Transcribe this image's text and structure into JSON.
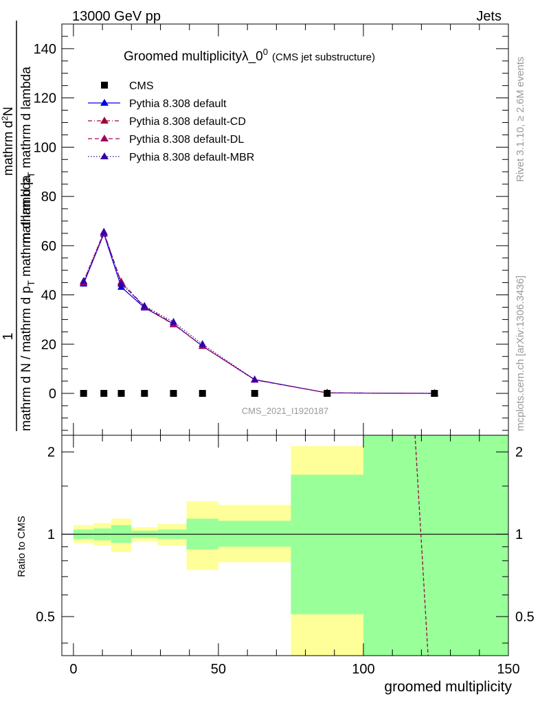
{
  "header": {
    "left": "13000 GeV pp",
    "right": "Jets"
  },
  "side_labels": {
    "rivet": "Rivet 3.1.10, ≥ 2.6M events",
    "mcplots": "mcplots.cern.ch [arXiv:1306.3436]"
  },
  "ylabel": {
    "numerator": "1",
    "denominator": "mathrm d N / mathrm d p",
    "denominator_sub": "T",
    "denominator_tail": " mathrm d lambda",
    "upper_numerator": "mathrm d",
    "upper_sup": "2",
    "upper_tail": "N",
    "upper_denom": "mathrm d p",
    "upper_denom_sub": "T",
    "upper_denom_tail": " mathrm d lambda"
  },
  "colors": {
    "cms": "#000000",
    "default": "#0000dd",
    "cd": "#a00040",
    "dl": "#a00060",
    "mbr": "#3300aa",
    "band_inner": "#99ff99",
    "band_outer": "#ffff99",
    "watermark": "#999999"
  },
  "chart_data": [
    {
      "type": "line",
      "title_main": "Groomed multiplicityλ_0",
      "title_sup": "0",
      "title_paren": "(CMS jet substructure)",
      "watermark": "CMS_2021_I1920187",
      "ylim": [
        -17,
        150
      ],
      "yticks": [
        0,
        20,
        40,
        60,
        80,
        100,
        120,
        140
      ],
      "xlim": [
        -4,
        150
      ],
      "legend_position": "top-left",
      "cms": {
        "name": "CMS",
        "x": [
          3.5,
          10.5,
          16.5,
          24.5,
          34.5,
          44.5,
          62.5,
          87.5,
          124.5
        ],
        "y": [
          0,
          0,
          0,
          0,
          0,
          0,
          0,
          0,
          0
        ]
      },
      "series": [
        {
          "name": "Pythia 8.308 default",
          "style": "solid",
          "x": [
            3.5,
            10.5,
            16.5,
            24.5,
            34.5,
            44.5,
            62.5,
            87.5,
            124.5
          ],
          "y": [
            44.5,
            64.8,
            43.2,
            34.8,
            28.2,
            19.2,
            5.6,
            0.2,
            0.0
          ]
        },
        {
          "name": "Pythia 8.308 default-CD",
          "style": "dashdot",
          "x": [
            3.5,
            10.5,
            16.5,
            24.5,
            34.5,
            44.5,
            62.5,
            87.5,
            124.5
          ],
          "y": [
            45.0,
            65.0,
            45.3,
            35.3,
            28.3,
            19.2,
            5.5,
            0.2,
            0.0
          ]
        },
        {
          "name": "Pythia 8.308 default-DL",
          "style": "dashed",
          "x": [
            3.5,
            10.5,
            16.5,
            24.5,
            34.5,
            44.5,
            62.5,
            87.5,
            124.5
          ],
          "y": [
            45.3,
            65.4,
            45.0,
            35.0,
            28.0,
            19.3,
            5.5,
            0.2,
            0.0
          ]
        },
        {
          "name": "Pythia 8.308 default-MBR",
          "style": "dotted",
          "x": [
            3.5,
            10.5,
            16.5,
            24.5,
            34.5,
            44.5,
            62.5,
            87.5,
            124.5
          ],
          "y": [
            45.6,
            65.6,
            44.4,
            35.5,
            29.0,
            20.0,
            5.6,
            0.2,
            0.0
          ]
        }
      ]
    },
    {
      "type": "area",
      "ylabel": "Ratio to CMS",
      "xlabel": "groomed multiplicity",
      "ylim": [
        0.36,
        2.3
      ],
      "xlim": [
        -4,
        150
      ],
      "xticks": [
        0,
        50,
        100,
        150
      ],
      "yticks": [
        0.5,
        1,
        2
      ],
      "bins": [
        {
          "lo": 0,
          "hi": 7,
          "inner": [
            0.96,
            1.04
          ],
          "outer": [
            0.93,
            1.08
          ]
        },
        {
          "lo": 7,
          "hi": 13,
          "inner": [
            0.95,
            1.05
          ],
          "outer": [
            0.91,
            1.1
          ]
        },
        {
          "lo": 13,
          "hi": 20,
          "inner": [
            0.93,
            1.08
          ],
          "outer": [
            0.86,
            1.14
          ]
        },
        {
          "lo": 20,
          "hi": 29,
          "inner": [
            0.97,
            1.03
          ],
          "outer": [
            0.94,
            1.06
          ]
        },
        {
          "lo": 29,
          "hi": 39,
          "inner": [
            0.96,
            1.04
          ],
          "outer": [
            0.91,
            1.09
          ]
        },
        {
          "lo": 39,
          "hi": 50,
          "inner": [
            0.88,
            1.14
          ],
          "outer": [
            0.74,
            1.32
          ]
        },
        {
          "lo": 50,
          "hi": 75,
          "inner": [
            0.9,
            1.12
          ],
          "outer": [
            0.79,
            1.28
          ]
        },
        {
          "lo": 75,
          "hi": 100,
          "inner": [
            0.51,
            1.65
          ],
          "outer": [
            0.36,
            2.1
          ]
        },
        {
          "lo": 100,
          "hi": 150,
          "inner": [
            0.36,
            2.3
          ],
          "outer": [
            0.36,
            2.3
          ]
        }
      ],
      "ratio_curve": {
        "x": [
          117.8,
          122.3
        ],
        "y": [
          2.3,
          0.36
        ]
      }
    }
  ]
}
